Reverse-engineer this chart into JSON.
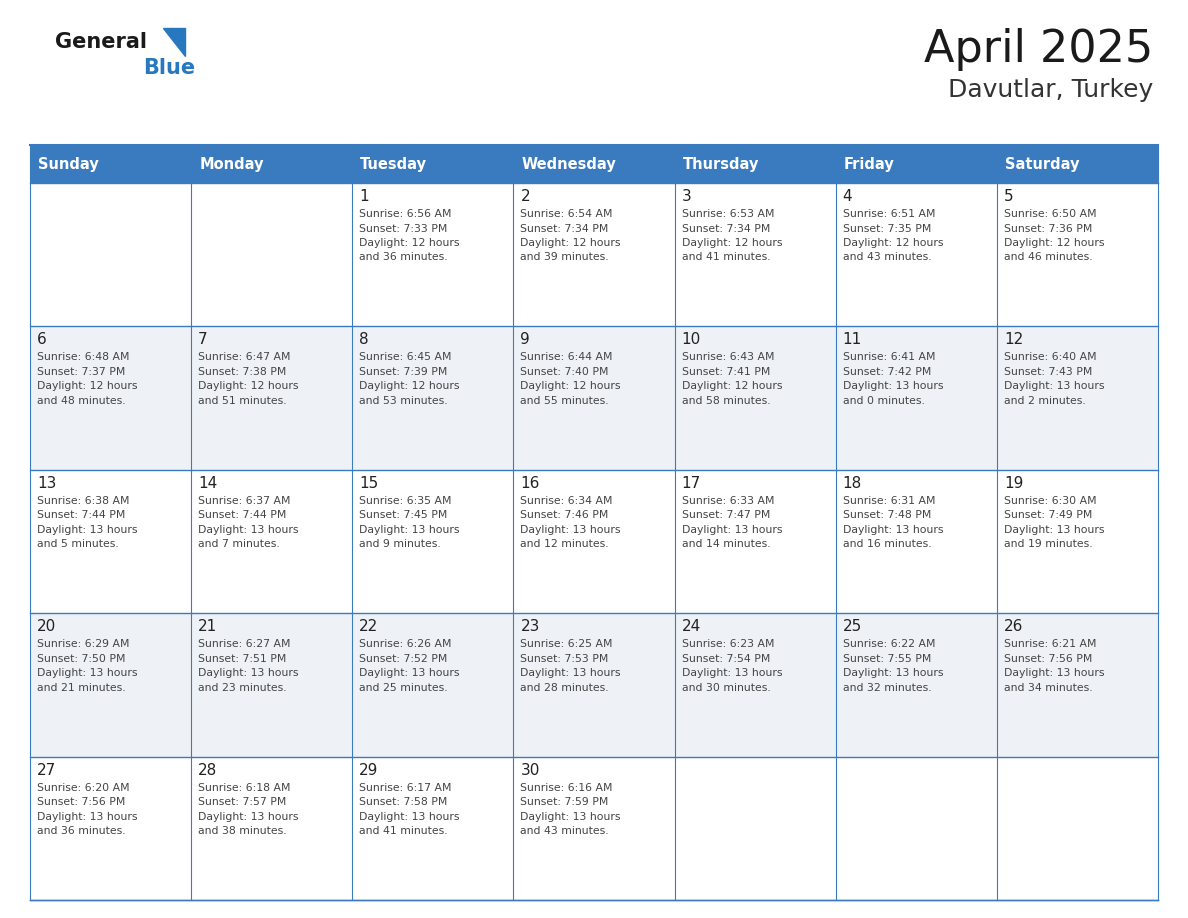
{
  "title": "April 2025",
  "subtitle": "Davutlar, Turkey",
  "header_bg": "#3a7abf",
  "header_text_color": "#ffffff",
  "cell_bg_light": "#eef2f7",
  "cell_bg_white": "#ffffff",
  "border_color": "#3a7abf",
  "day_headers": [
    "Sunday",
    "Monday",
    "Tuesday",
    "Wednesday",
    "Thursday",
    "Friday",
    "Saturday"
  ],
  "title_color": "#1a1a1a",
  "subtitle_color": "#333333",
  "day_num_color": "#222222",
  "info_color": "#444444",
  "logo_general_color": "#1a1a1a",
  "logo_blue_color": "#2878c0",
  "weeks": [
    [
      {
        "day": "",
        "info": ""
      },
      {
        "day": "",
        "info": ""
      },
      {
        "day": "1",
        "info": "Sunrise: 6:56 AM\nSunset: 7:33 PM\nDaylight: 12 hours\nand 36 minutes."
      },
      {
        "day": "2",
        "info": "Sunrise: 6:54 AM\nSunset: 7:34 PM\nDaylight: 12 hours\nand 39 minutes."
      },
      {
        "day": "3",
        "info": "Sunrise: 6:53 AM\nSunset: 7:34 PM\nDaylight: 12 hours\nand 41 minutes."
      },
      {
        "day": "4",
        "info": "Sunrise: 6:51 AM\nSunset: 7:35 PM\nDaylight: 12 hours\nand 43 minutes."
      },
      {
        "day": "5",
        "info": "Sunrise: 6:50 AM\nSunset: 7:36 PM\nDaylight: 12 hours\nand 46 minutes."
      }
    ],
    [
      {
        "day": "6",
        "info": "Sunrise: 6:48 AM\nSunset: 7:37 PM\nDaylight: 12 hours\nand 48 minutes."
      },
      {
        "day": "7",
        "info": "Sunrise: 6:47 AM\nSunset: 7:38 PM\nDaylight: 12 hours\nand 51 minutes."
      },
      {
        "day": "8",
        "info": "Sunrise: 6:45 AM\nSunset: 7:39 PM\nDaylight: 12 hours\nand 53 minutes."
      },
      {
        "day": "9",
        "info": "Sunrise: 6:44 AM\nSunset: 7:40 PM\nDaylight: 12 hours\nand 55 minutes."
      },
      {
        "day": "10",
        "info": "Sunrise: 6:43 AM\nSunset: 7:41 PM\nDaylight: 12 hours\nand 58 minutes."
      },
      {
        "day": "11",
        "info": "Sunrise: 6:41 AM\nSunset: 7:42 PM\nDaylight: 13 hours\nand 0 minutes."
      },
      {
        "day": "12",
        "info": "Sunrise: 6:40 AM\nSunset: 7:43 PM\nDaylight: 13 hours\nand 2 minutes."
      }
    ],
    [
      {
        "day": "13",
        "info": "Sunrise: 6:38 AM\nSunset: 7:44 PM\nDaylight: 13 hours\nand 5 minutes."
      },
      {
        "day": "14",
        "info": "Sunrise: 6:37 AM\nSunset: 7:44 PM\nDaylight: 13 hours\nand 7 minutes."
      },
      {
        "day": "15",
        "info": "Sunrise: 6:35 AM\nSunset: 7:45 PM\nDaylight: 13 hours\nand 9 minutes."
      },
      {
        "day": "16",
        "info": "Sunrise: 6:34 AM\nSunset: 7:46 PM\nDaylight: 13 hours\nand 12 minutes."
      },
      {
        "day": "17",
        "info": "Sunrise: 6:33 AM\nSunset: 7:47 PM\nDaylight: 13 hours\nand 14 minutes."
      },
      {
        "day": "18",
        "info": "Sunrise: 6:31 AM\nSunset: 7:48 PM\nDaylight: 13 hours\nand 16 minutes."
      },
      {
        "day": "19",
        "info": "Sunrise: 6:30 AM\nSunset: 7:49 PM\nDaylight: 13 hours\nand 19 minutes."
      }
    ],
    [
      {
        "day": "20",
        "info": "Sunrise: 6:29 AM\nSunset: 7:50 PM\nDaylight: 13 hours\nand 21 minutes."
      },
      {
        "day": "21",
        "info": "Sunrise: 6:27 AM\nSunset: 7:51 PM\nDaylight: 13 hours\nand 23 minutes."
      },
      {
        "day": "22",
        "info": "Sunrise: 6:26 AM\nSunset: 7:52 PM\nDaylight: 13 hours\nand 25 minutes."
      },
      {
        "day": "23",
        "info": "Sunrise: 6:25 AM\nSunset: 7:53 PM\nDaylight: 13 hours\nand 28 minutes."
      },
      {
        "day": "24",
        "info": "Sunrise: 6:23 AM\nSunset: 7:54 PM\nDaylight: 13 hours\nand 30 minutes."
      },
      {
        "day": "25",
        "info": "Sunrise: 6:22 AM\nSunset: 7:55 PM\nDaylight: 13 hours\nand 32 minutes."
      },
      {
        "day": "26",
        "info": "Sunrise: 6:21 AM\nSunset: 7:56 PM\nDaylight: 13 hours\nand 34 minutes."
      }
    ],
    [
      {
        "day": "27",
        "info": "Sunrise: 6:20 AM\nSunset: 7:56 PM\nDaylight: 13 hours\nand 36 minutes."
      },
      {
        "day": "28",
        "info": "Sunrise: 6:18 AM\nSunset: 7:57 PM\nDaylight: 13 hours\nand 38 minutes."
      },
      {
        "day": "29",
        "info": "Sunrise: 6:17 AM\nSunset: 7:58 PM\nDaylight: 13 hours\nand 41 minutes."
      },
      {
        "day": "30",
        "info": "Sunrise: 6:16 AM\nSunset: 7:59 PM\nDaylight: 13 hours\nand 43 minutes."
      },
      {
        "day": "",
        "info": ""
      },
      {
        "day": "",
        "info": ""
      },
      {
        "day": "",
        "info": ""
      }
    ]
  ]
}
